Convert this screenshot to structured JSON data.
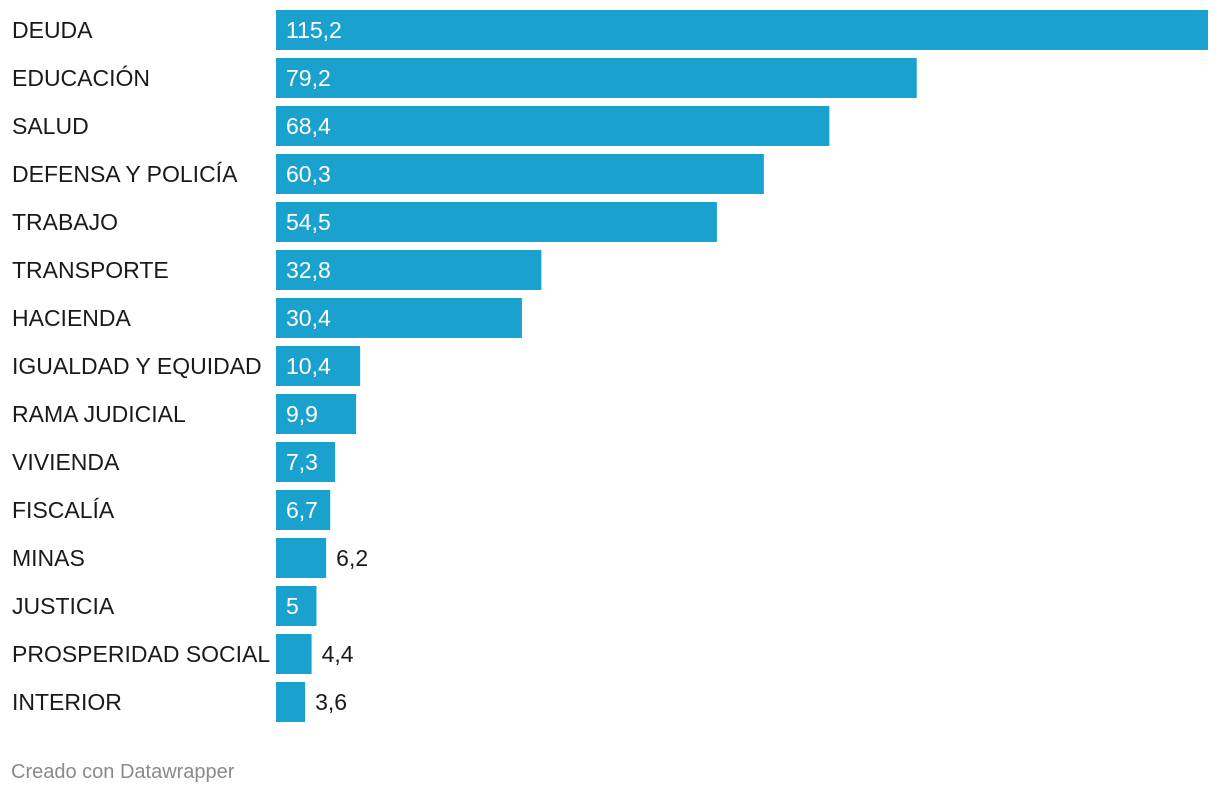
{
  "chart_data": {
    "type": "bar",
    "orientation": "horizontal",
    "title": "",
    "xlabel": "",
    "ylabel": "",
    "categories": [
      "DEUDA",
      "EDUCACIÓN",
      "SALUD",
      "DEFENSA Y POLICÍA",
      "TRABAJO",
      "TRANSPORTE",
      "HACIENDA",
      "IGUALDAD Y EQUIDAD",
      "RAMA JUDICIAL",
      "VIVIENDA",
      "FISCALÍA",
      "MINAS",
      "JUSTICIA",
      "PROSPERIDAD SOCIAL",
      "INTERIOR"
    ],
    "values": [
      115.2,
      79.2,
      68.4,
      60.3,
      54.5,
      32.8,
      30.4,
      10.4,
      9.9,
      7.3,
      6.7,
      6.2,
      5,
      4.4,
      3.6
    ],
    "value_labels": [
      "115,2",
      "79,2",
      "68,4",
      "60,3",
      "54,5",
      "32,8",
      "30,4",
      "10,4",
      "9,9",
      "7,3",
      "6,7",
      "6,2",
      "5",
      "4,4",
      "3,6"
    ],
    "xlim": [
      0,
      115.2
    ],
    "grid": false,
    "legend": "none"
  },
  "colors": {
    "bar": "#1ba1ce",
    "label_inside": "#ffffff",
    "label_outside": "#1a1a1a"
  },
  "footer": {
    "credit": "Creado con Datawrapper"
  }
}
